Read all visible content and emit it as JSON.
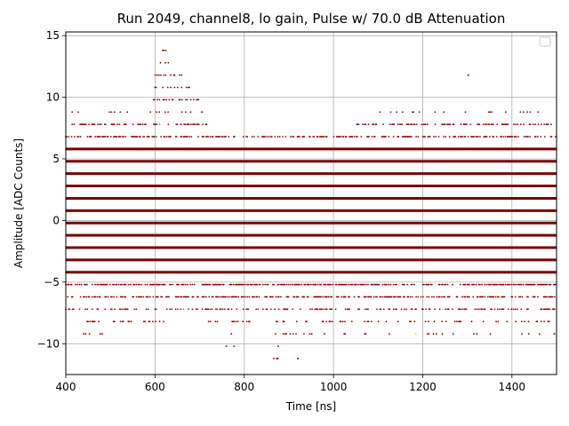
{
  "chart_data": {
    "type": "scatter",
    "title": "Run 2049, channel8, lo gain, Pulse w/ 70.0 dB Attenuation",
    "xlabel": "Time [ns]",
    "ylabel": "Amplitude [ADC Counts]",
    "xlim": [
      400,
      1500
    ],
    "ylim": [
      -12.5,
      15.3
    ],
    "grid": true,
    "legend": "top-right, empty",
    "xticks": [
      400,
      600,
      800,
      1000,
      1200,
      1400
    ],
    "yticks": [
      -10,
      -5,
      0,
      5,
      10,
      15
    ],
    "xtick_labels": [
      "400",
      "600",
      "800",
      "1000",
      "1200",
      "1400"
    ],
    "ytick_labels": [
      "−10",
      "−5",
      "0",
      "5",
      "10",
      "15"
    ],
    "colors": {
      "dense": "#7a0000",
      "sparse": "#8b0000",
      "accents": [
        "#00bfff",
        "#ffd700",
        "#2e8b57",
        "#4169e1"
      ]
    },
    "dense_levels": [
      -4.2,
      -3.2,
      -2.2,
      -1.2,
      -0.2,
      0.8,
      1.8,
      2.8,
      3.8,
      4.8,
      5.8
    ],
    "partial_levels": [
      {
        "y": 6.8,
        "ranges": [
          [
            400,
            1500
          ]
        ],
        "density": 0.55
      },
      {
        "y": 7.8,
        "ranges": [
          [
            410,
            720
          ],
          [
            1050,
            1500
          ]
        ],
        "density": 0.45
      },
      {
        "y": 8.8,
        "ranges": [
          [
            410,
            540
          ],
          [
            570,
            720
          ],
          [
            1100,
            1460
          ]
        ],
        "density": 0.12
      },
      {
        "y": 9.8,
        "ranges": [
          [
            590,
            700
          ]
        ],
        "density": 0.5
      },
      {
        "y": 10.8,
        "ranges": [
          [
            600,
            680
          ]
        ],
        "density": 0.45
      },
      {
        "y": 11.8,
        "ranges": [
          [
            600,
            660
          ]
        ],
        "density": 0.4
      },
      {
        "y": 12.8,
        "ranges": [
          [
            610,
            635
          ]
        ],
        "density": 0.4
      },
      {
        "y": 13.8,
        "ranges": [
          [
            613,
            625
          ]
        ],
        "density": 0.6
      },
      {
        "y": -5.2,
        "ranges": [
          [
            400,
            1500
          ]
        ],
        "density": 0.6
      },
      {
        "y": -6.2,
        "ranges": [
          [
            400,
            1500
          ]
        ],
        "density": 0.5
      },
      {
        "y": -7.2,
        "ranges": [
          [
            400,
            1500
          ]
        ],
        "density": 0.35
      },
      {
        "y": -8.2,
        "ranges": [
          [
            430,
            620
          ],
          [
            720,
            1500
          ]
        ],
        "density": 0.2
      },
      {
        "y": -9.2,
        "ranges": [
          [
            440,
            520
          ],
          [
            760,
            1500
          ]
        ],
        "density": 0.1
      },
      {
        "y": -10.2,
        "ranges": [
          [
            720,
            1000
          ],
          [
            1300,
            1500
          ]
        ],
        "density": 0.03
      },
      {
        "y": -11.2,
        "ranges": [
          [
            860,
            930
          ]
        ],
        "density": 0.05
      }
    ],
    "isolated_points": [
      {
        "x": 1302,
        "y": 11.8
      },
      {
        "x": 873,
        "y": -11.2
      },
      {
        "x": 920,
        "y": -11.2
      },
      {
        "x": 1495,
        "y": -9.2
      }
    ]
  }
}
